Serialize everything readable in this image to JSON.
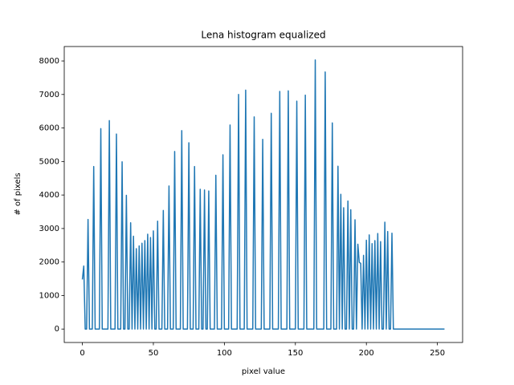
{
  "chart_data": {
    "type": "line",
    "title": "Lena histogram equalized",
    "xlabel": "pixel value",
    "ylabel": "# of pixels",
    "color": "#1f77b4",
    "xlim": [
      -12.75,
      267.75
    ],
    "ylim": [
      -401.5,
      8431.5
    ],
    "xticks": [
      0,
      50,
      100,
      150,
      200,
      250
    ],
    "yticks": [
      0,
      1000,
      2000,
      3000,
      4000,
      5000,
      6000,
      7000,
      8000
    ],
    "x": [
      0,
      1,
      2,
      3,
      4,
      5,
      6,
      7,
      8,
      9,
      10,
      11,
      12,
      13,
      14,
      15,
      16,
      17,
      18,
      19,
      20,
      21,
      22,
      23,
      24,
      25,
      26,
      27,
      28,
      29,
      30,
      31,
      32,
      33,
      34,
      35,
      36,
      37,
      38,
      39,
      40,
      41,
      42,
      43,
      44,
      45,
      46,
      47,
      48,
      49,
      50,
      51,
      52,
      53,
      54,
      55,
      56,
      57,
      58,
      59,
      60,
      61,
      62,
      63,
      64,
      65,
      66,
      67,
      68,
      69,
      70,
      71,
      72,
      73,
      74,
      75,
      76,
      77,
      78,
      79,
      80,
      81,
      82,
      83,
      84,
      85,
      86,
      87,
      88,
      89,
      90,
      91,
      92,
      93,
      94,
      95,
      96,
      97,
      98,
      99,
      100,
      101,
      102,
      103,
      104,
      105,
      106,
      107,
      108,
      109,
      110,
      111,
      112,
      113,
      114,
      115,
      116,
      117,
      118,
      119,
      120,
      121,
      122,
      123,
      124,
      125,
      126,
      127,
      128,
      129,
      130,
      131,
      132,
      133,
      134,
      135,
      136,
      137,
      138,
      139,
      140,
      141,
      142,
      143,
      144,
      145,
      146,
      147,
      148,
      149,
      150,
      151,
      152,
      153,
      154,
      155,
      156,
      157,
      158,
      159,
      160,
      161,
      162,
      163,
      164,
      165,
      166,
      167,
      168,
      169,
      170,
      171,
      172,
      173,
      174,
      175,
      176,
      177,
      178,
      179,
      180,
      181,
      182,
      183,
      184,
      185,
      186,
      187,
      188,
      189,
      190,
      191,
      192,
      193,
      194,
      195,
      196,
      197,
      198,
      199,
      200,
      201,
      202,
      203,
      204,
      205,
      206,
      207,
      208,
      209,
      210,
      211,
      212,
      213,
      214,
      215,
      216,
      217,
      218,
      219,
      220,
      221,
      222,
      223,
      224,
      225,
      226,
      227,
      228,
      229,
      230,
      231,
      232,
      233,
      234,
      235,
      236,
      237,
      238,
      239,
      240,
      241,
      242,
      243,
      244,
      245,
      246,
      247,
      248,
      249,
      250,
      251,
      252,
      253,
      254,
      255
    ],
    "values": [
      1480,
      1880,
      0,
      0,
      3270,
      0,
      0,
      0,
      4850,
      0,
      0,
      0,
      0,
      5980,
      0,
      0,
      0,
      0,
      0,
      6220,
      0,
      0,
      0,
      0,
      5820,
      0,
      0,
      0,
      4990,
      0,
      0,
      3990,
      0,
      0,
      3170,
      0,
      2770,
      0,
      2400,
      0,
      2480,
      0,
      2560,
      0,
      2640,
      0,
      2830,
      0,
      2730,
      0,
      2930,
      0,
      0,
      3220,
      0,
      0,
      0,
      3540,
      0,
      0,
      0,
      4270,
      0,
      0,
      0,
      5300,
      0,
      0,
      0,
      0,
      5920,
      0,
      0,
      0,
      0,
      5560,
      0,
      0,
      0,
      4850,
      0,
      0,
      0,
      4170,
      0,
      0,
      4150,
      0,
      0,
      4120,
      0,
      0,
      0,
      0,
      4590,
      0,
      0,
      0,
      0,
      5200,
      0,
      0,
      0,
      0,
      6090,
      0,
      0,
      0,
      0,
      0,
      7000,
      0,
      0,
      0,
      0,
      7130,
      0,
      0,
      0,
      0,
      0,
      6330,
      0,
      0,
      0,
      0,
      0,
      5660,
      0,
      0,
      0,
      0,
      0,
      6440,
      0,
      0,
      0,
      0,
      0,
      7090,
      0,
      0,
      0,
      0,
      0,
      7110,
      0,
      0,
      0,
      0,
      0,
      6800,
      0,
      0,
      0,
      0,
      0,
      6980,
      0,
      0,
      0,
      0,
      0,
      0,
      8030,
      0,
      0,
      0,
      0,
      0,
      0,
      7670,
      0,
      0,
      0,
      0,
      6150,
      0,
      0,
      0,
      4860,
      0,
      4020,
      0,
      3620,
      0,
      0,
      3820,
      0,
      3560,
      0,
      0,
      3260,
      0,
      2530,
      1990,
      1960,
      0,
      2200,
      0,
      2650,
      0,
      2810,
      0,
      2550,
      0,
      2640,
      0,
      2850,
      0,
      2610,
      0,
      0,
      3190,
      0,
      2910,
      0,
      0,
      2860,
      0,
      0,
      0,
      0,
      0,
      0,
      0,
      0,
      0,
      0,
      0,
      0,
      0,
      0,
      0,
      0,
      0,
      0,
      0,
      0,
      0,
      0,
      0,
      0,
      0,
      0,
      0,
      0,
      0,
      0,
      0,
      0,
      0,
      0,
      0,
      0,
      0
    ]
  }
}
